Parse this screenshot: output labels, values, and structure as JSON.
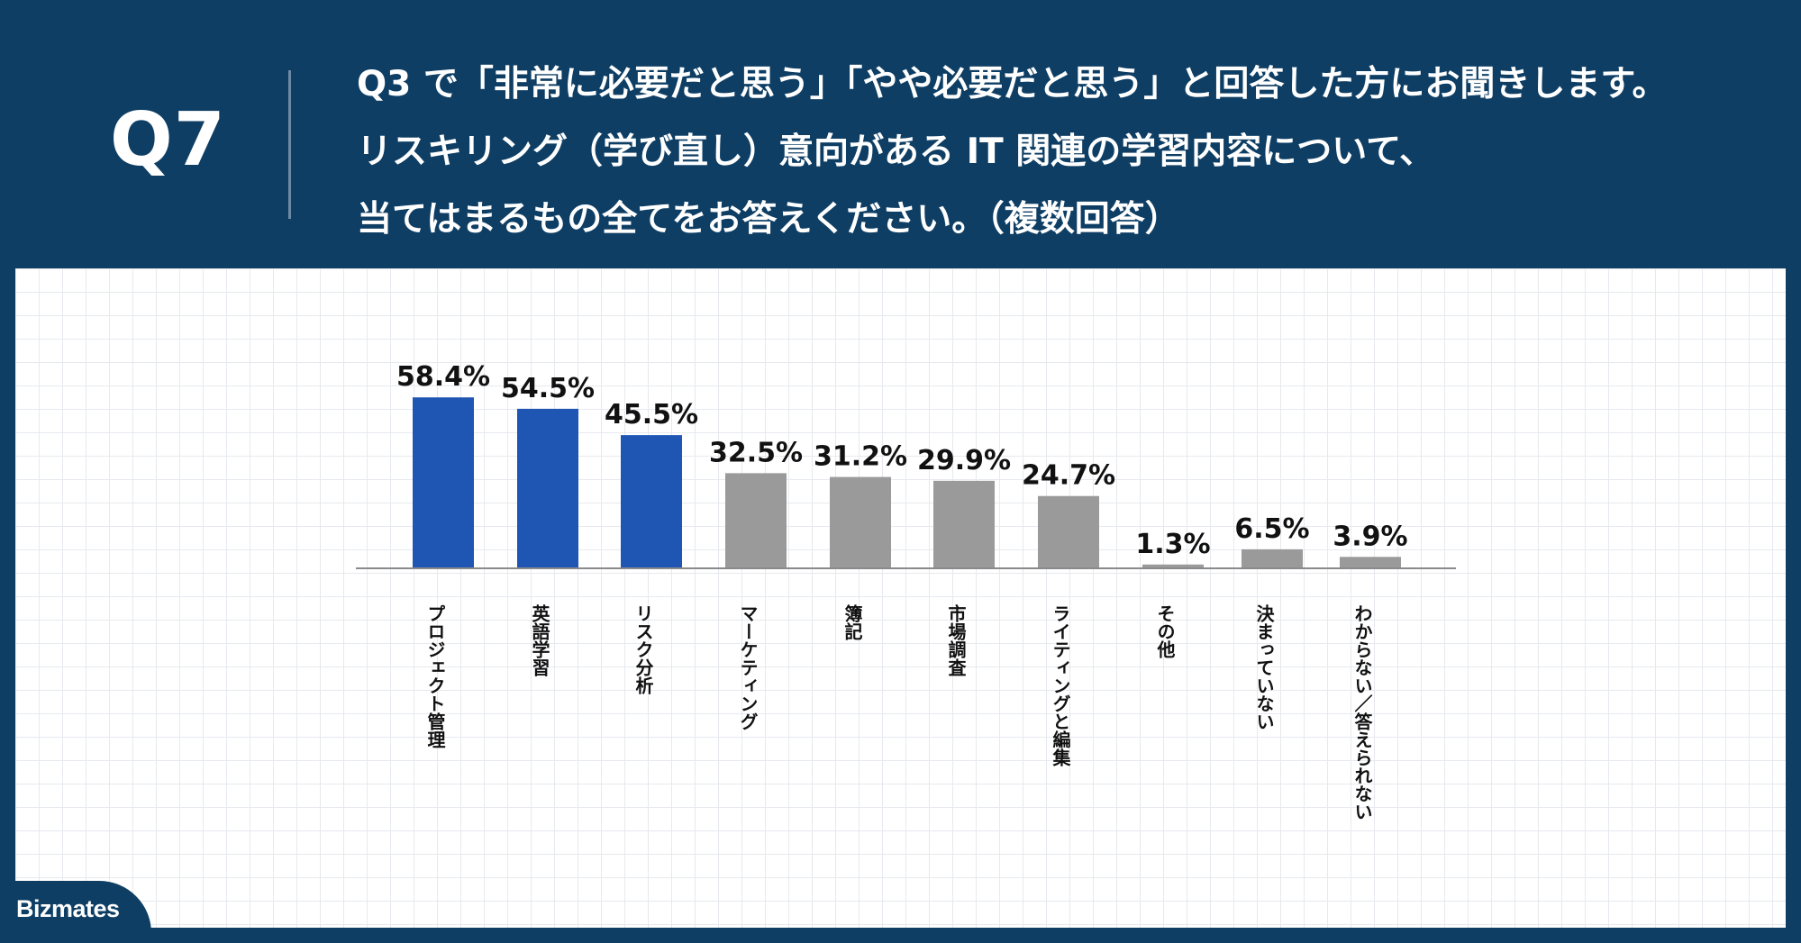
{
  "header": {
    "question_number": "Q7",
    "question_lines": [
      "Q3 で「非常に必要だと思う」「やや必要だと思う」と回答した方にお聞きします。",
      "リスキリング（学び直し）意向がある IT 関連の学習内容について、",
      "当てはまるもの全てをお答えください。（複数回答）"
    ]
  },
  "brand": {
    "logo_text": "Bizmates"
  },
  "colors": {
    "background": "#0e3e64",
    "highlight_bar": "#1f55b3",
    "default_bar": "#9a9a9a",
    "axis": "#8a8a8a",
    "value_label": "#111111"
  },
  "chart_data": {
    "type": "bar",
    "categories": [
      "プロジェクト管理",
      "英語学習",
      "リスク分析",
      "マーケティング",
      "簿記",
      "市場調査",
      "ライティングと編集",
      "その他",
      "決まっていない",
      "わからない／答えられない"
    ],
    "values": [
      58.4,
      54.5,
      45.5,
      32.5,
      31.2,
      29.9,
      24.7,
      1.3,
      6.5,
      3.9
    ],
    "value_labels": [
      "58.4%",
      "54.5%",
      "45.5%",
      "32.5%",
      "31.2%",
      "29.9%",
      "24.7%",
      "1.3%",
      "6.5%",
      "3.9%"
    ],
    "highlighted": [
      true,
      true,
      true,
      false,
      false,
      false,
      false,
      false,
      false,
      false
    ],
    "unit": "%",
    "ylim": [
      0,
      60
    ],
    "grid": false,
    "legend": "none",
    "label_orientation": "vertical",
    "title": "",
    "xlabel": "",
    "ylabel": ""
  }
}
